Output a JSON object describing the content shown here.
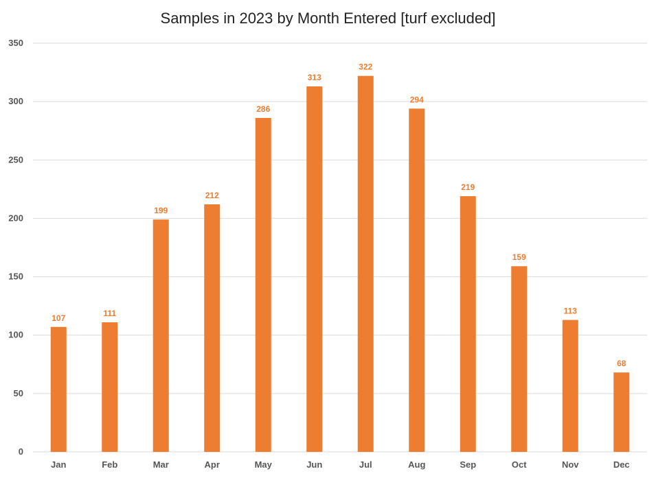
{
  "chart_data": {
    "type": "bar",
    "title": "Samples in 2023 by Month Entered [turf excluded]",
    "xlabel": "",
    "ylabel": "",
    "categories": [
      "Jan",
      "Feb",
      "Mar",
      "Apr",
      "May",
      "Jun",
      "Jul",
      "Aug",
      "Sep",
      "Oct",
      "Nov",
      "Dec"
    ],
    "values": [
      107,
      111,
      199,
      212,
      286,
      313,
      322,
      294,
      219,
      159,
      113,
      68
    ],
    "ylim": [
      0,
      350
    ],
    "yticks": [
      0,
      50,
      100,
      150,
      200,
      250,
      300,
      350
    ],
    "grid": true,
    "legend": "none",
    "bar_color": "#ED7D31",
    "label_color": "#ED7D31",
    "gridline_color": "#D9D9D9"
  }
}
